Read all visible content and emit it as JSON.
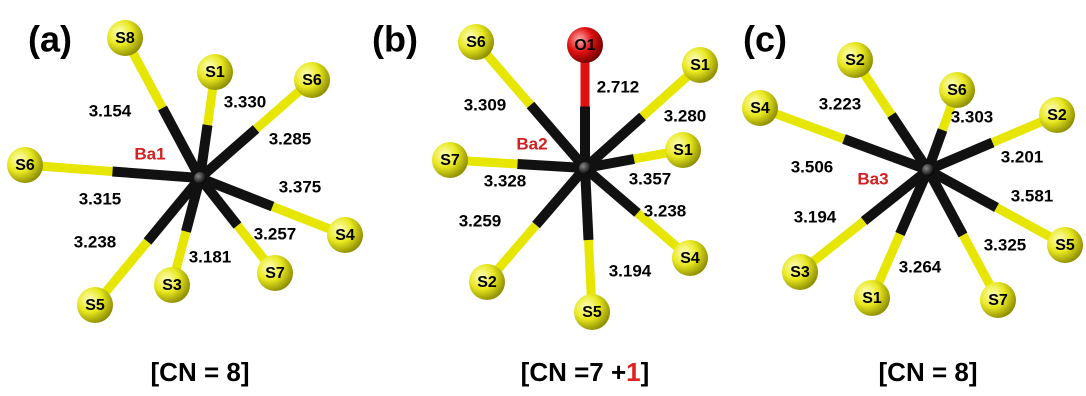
{
  "panels": [
    {
      "label": "(a)",
      "center": "Ba1",
      "caption": [
        "[CN = 8]"
      ],
      "ligands": [
        {
          "atom": "S8",
          "distance": "3.154"
        },
        {
          "atom": "S1",
          "distance": "3.330"
        },
        {
          "atom": "S6",
          "distance": "3.285"
        },
        {
          "atom": "S6",
          "distance": "3.315"
        },
        {
          "atom": "S4",
          "distance": "3.375"
        },
        {
          "atom": "S5",
          "distance": "3.238"
        },
        {
          "atom": "S3",
          "distance": "3.181"
        },
        {
          "atom": "S7",
          "distance": "3.257"
        }
      ]
    },
    {
      "label": "(b)",
      "center": "Ba2",
      "caption": [
        "[CN =7 +",
        "1",
        "]"
      ],
      "ligands": [
        {
          "atom": "S6",
          "distance": "3.309"
        },
        {
          "atom": "O1",
          "distance": "2.712"
        },
        {
          "atom": "S1",
          "distance": "3.280"
        },
        {
          "atom": "S7",
          "distance": "3.328"
        },
        {
          "atom": "S1",
          "distance": "3.357"
        },
        {
          "atom": "S2",
          "distance": "3.259"
        },
        {
          "atom": "S4",
          "distance": "3.238"
        },
        {
          "atom": "S5",
          "distance": "3.194"
        }
      ]
    },
    {
      "label": "(c)",
      "center": "Ba3",
      "caption": [
        "[CN = 8]"
      ],
      "ligands": [
        {
          "atom": "S2",
          "distance": "3.223"
        },
        {
          "atom": "S6",
          "distance": "3.303"
        },
        {
          "atom": "S2",
          "distance": "3.201"
        },
        {
          "atom": "S4",
          "distance": "3.506"
        },
        {
          "atom": "S5",
          "distance": "3.581"
        },
        {
          "atom": "S3",
          "distance": "3.194"
        },
        {
          "atom": "S1",
          "distance": "3.264"
        },
        {
          "atom": "S7",
          "distance": "3.325"
        }
      ]
    }
  ]
}
